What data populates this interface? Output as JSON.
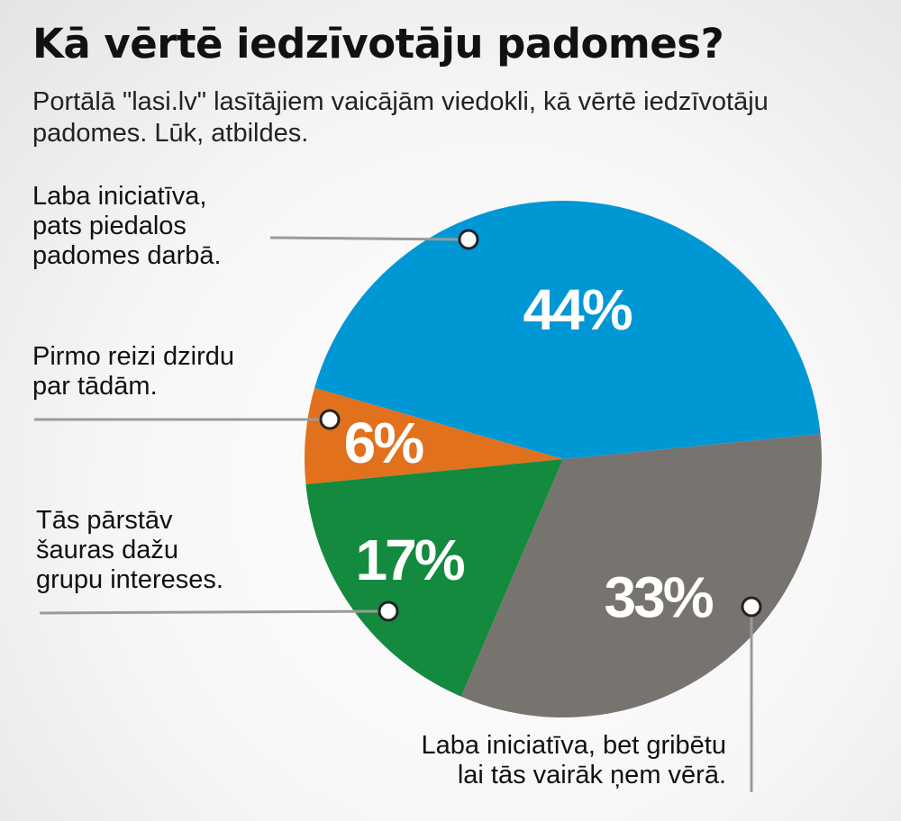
{
  "chart_data": {
    "type": "pie",
    "title": "Kā vērtē iedzīvotāju padomes?",
    "subtitle": "Portālā \"lasi.lv\" lasītājiem vaicājām viedokli, kā vērtē iedzīvotāju padomes. Lūk, atbildes.",
    "slices": [
      {
        "label_lines": [
          "Laba iniciatīva,",
          "pats piedalos",
          "padomes darbā."
        ],
        "value": 6,
        "value_label": "6%",
        "color": "#e2711d"
      },
      {
        "label_lines": [
          "Pirmo reizi dzirdu",
          "par tādām."
        ],
        "value": 17,
        "value_label": "17%",
        "color": "#138a3e"
      },
      {
        "label_lines": [
          "Tās pārstāv",
          "šauras dažu",
          "grupu intereses."
        ],
        "value": 33,
        "value_label": "33%",
        "color": "#77736f"
      },
      {
        "label_lines": [
          "Laba iniciatīva, bet gribētu",
          "lai tās vairāk ņem vērā."
        ],
        "value": 44,
        "value_label": "44%",
        "color": "#0097d5"
      }
    ]
  }
}
